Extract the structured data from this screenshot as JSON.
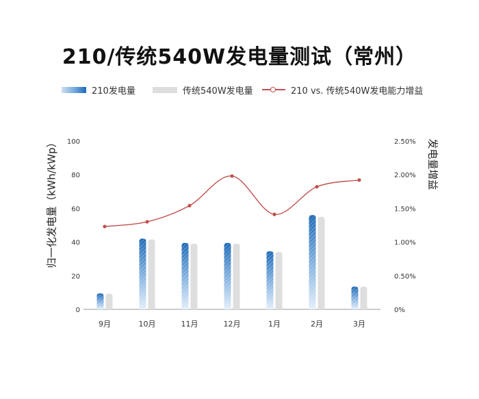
{
  "chart_data": {
    "type": "bar",
    "title": "210/传统540W发电量测试（常州）",
    "categories": [
      "9月",
      "10月",
      "11月",
      "12月",
      "1月",
      "2月",
      "3月"
    ],
    "series": [
      {
        "name": "210发电量",
        "type": "bar",
        "axis": "left",
        "color": "#1e6ab7",
        "values": [
          9.5,
          42,
          39.5,
          39.5,
          34.5,
          56,
          13.5
        ]
      },
      {
        "name": "传统540W发电量",
        "type": "bar",
        "axis": "left",
        "color": "#dedede",
        "values": [
          9.3,
          41.5,
          39,
          39,
          34,
          55,
          13.5
        ]
      },
      {
        "name": "210 vs. 传统540W发电能力增益",
        "type": "line",
        "axis": "right",
        "color": "#c0504d",
        "values": [
          1.23,
          1.3,
          1.54,
          1.98,
          1.41,
          1.82,
          1.92
        ]
      }
    ],
    "ylabel": "归一化发电量（kWh/kWp）",
    "y2label": "发电量增益",
    "ylim": [
      0,
      100
    ],
    "y2lim": [
      0,
      2.5
    ],
    "yticks": [
      "0",
      "20",
      "40",
      "60",
      "80",
      "100"
    ],
    "y2ticks": [
      "0%",
      "0.50%",
      "1.00%",
      "1.50%",
      "2.00%",
      "2.50%"
    ],
    "grid": false,
    "legend_position": "top"
  }
}
